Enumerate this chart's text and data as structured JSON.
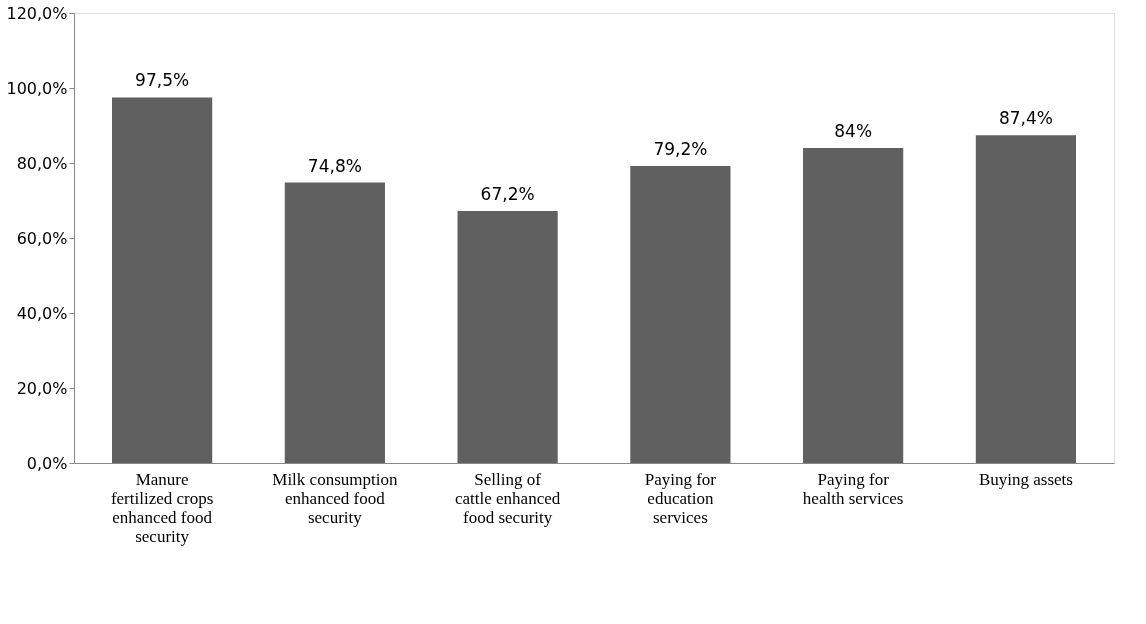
{
  "chart_data": {
    "type": "bar",
    "categories": [
      "Manure fertilized crops enhanced food security",
      "Milk consumption enhanced food security",
      "Selling of cattle enhanced food security",
      "Paying for education services",
      "Paying for health services",
      "Buying assets"
    ],
    "values": [
      97.5,
      74.8,
      67.2,
      79.2,
      84,
      87.4
    ],
    "value_labels": [
      "97,5%",
      "74,8%",
      "67,2%",
      "79,2%",
      "84%",
      "87,4%"
    ],
    "color": "#606060",
    "ylim": [
      0,
      120
    ],
    "yticks": [
      {
        "value": 0,
        "label": "0,0%"
      },
      {
        "value": 20,
        "label": "20,0%"
      },
      {
        "value": 40,
        "label": "40,0%"
      },
      {
        "value": 60,
        "label": "60,0%"
      },
      {
        "value": 80,
        "label": "80,0%"
      },
      {
        "value": 100,
        "label": "100,0%"
      },
      {
        "value": 120,
        "label": "120,0%"
      }
    ],
    "grid": false
  }
}
